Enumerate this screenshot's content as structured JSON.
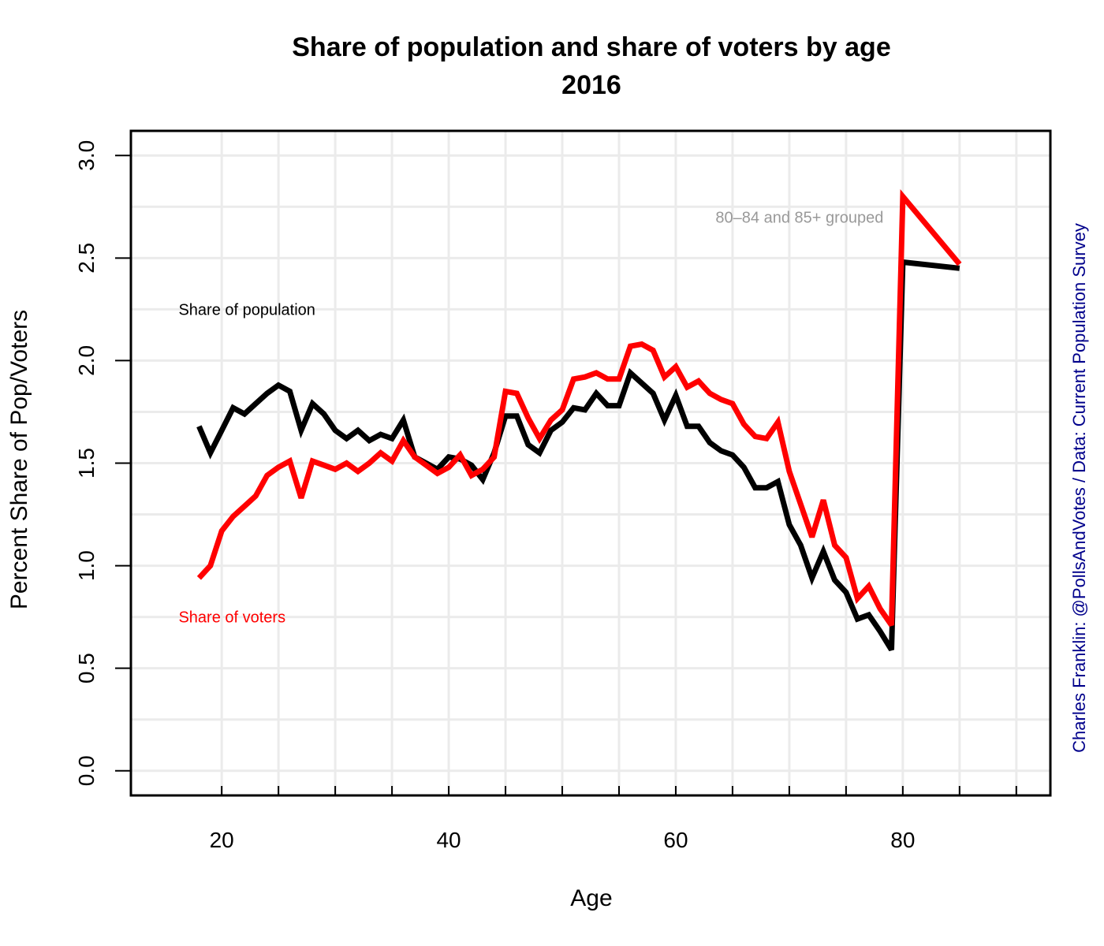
{
  "chart_data": {
    "type": "line",
    "title": "Share of population and share of voters by age",
    "subtitle": "2016",
    "xlabel": "Age",
    "ylabel": "Percent Share of Pop/Voters",
    "xlim": [
      12,
      93
    ],
    "ylim": [
      -0.12,
      3.12
    ],
    "x_ticks": [
      20,
      40,
      60,
      80
    ],
    "x_tick_labels": [
      "20",
      "40",
      "60",
      "80"
    ],
    "x_minor_ticks": [
      25,
      30,
      35,
      45,
      50,
      55,
      65,
      70,
      75,
      85,
      90
    ],
    "y_ticks": [
      0.0,
      0.5,
      1.0,
      1.5,
      2.0,
      2.5,
      3.0
    ],
    "y_tick_labels": [
      "0.0",
      "0.5",
      "1.0",
      "1.5",
      "2.0",
      "2.5",
      "3.0"
    ],
    "grid": true,
    "gridlines_x": [
      20,
      25,
      30,
      35,
      40,
      45,
      50,
      55,
      60,
      65,
      70,
      75,
      80,
      85,
      90
    ],
    "gridlines_y": [
      0.0,
      0.25,
      0.5,
      0.75,
      1.0,
      1.25,
      1.5,
      1.75,
      2.0,
      2.25,
      2.5,
      2.75,
      3.0
    ],
    "series": [
      {
        "name": "Share of population",
        "color": "#000000",
        "x": [
          18,
          19,
          20,
          21,
          22,
          23,
          24,
          25,
          26,
          27,
          28,
          29,
          30,
          31,
          32,
          33,
          34,
          35,
          36,
          37,
          38,
          39,
          40,
          41,
          42,
          43,
          44,
          45,
          46,
          47,
          48,
          49,
          50,
          51,
          52,
          53,
          54,
          55,
          56,
          57,
          58,
          59,
          60,
          61,
          62,
          63,
          64,
          65,
          66,
          67,
          68,
          69,
          70,
          71,
          72,
          73,
          74,
          75,
          76,
          77,
          78,
          79,
          80,
          85
        ],
        "values": [
          1.68,
          1.55,
          1.66,
          1.77,
          1.74,
          1.79,
          1.84,
          1.88,
          1.85,
          1.66,
          1.79,
          1.74,
          1.66,
          1.62,
          1.66,
          1.61,
          1.64,
          1.62,
          1.71,
          1.53,
          1.5,
          1.47,
          1.53,
          1.52,
          1.49,
          1.42,
          1.55,
          1.73,
          1.73,
          1.59,
          1.55,
          1.66,
          1.7,
          1.77,
          1.76,
          1.84,
          1.78,
          1.78,
          1.94,
          1.89,
          1.84,
          1.71,
          1.83,
          1.68,
          1.68,
          1.6,
          1.56,
          1.54,
          1.48,
          1.38,
          1.38,
          1.41,
          1.2,
          1.1,
          0.94,
          1.07,
          0.93,
          0.87,
          0.74,
          0.76,
          0.68,
          0.59,
          2.48,
          2.45
        ]
      },
      {
        "name": "Share of voters",
        "color": "#ff0000",
        "x": [
          18,
          19,
          20,
          21,
          22,
          23,
          24,
          25,
          26,
          27,
          28,
          29,
          30,
          31,
          32,
          33,
          34,
          35,
          36,
          37,
          38,
          39,
          40,
          41,
          42,
          43,
          44,
          45,
          46,
          47,
          48,
          49,
          50,
          51,
          52,
          53,
          54,
          55,
          56,
          57,
          58,
          59,
          60,
          61,
          62,
          63,
          64,
          65,
          66,
          67,
          68,
          69,
          70,
          71,
          72,
          73,
          74,
          75,
          76,
          77,
          78,
          79,
          80,
          85
        ],
        "values": [
          0.94,
          1.0,
          1.17,
          1.24,
          1.29,
          1.34,
          1.44,
          1.48,
          1.51,
          1.33,
          1.51,
          1.49,
          1.47,
          1.5,
          1.46,
          1.5,
          1.55,
          1.51,
          1.61,
          1.53,
          1.49,
          1.45,
          1.48,
          1.54,
          1.44,
          1.47,
          1.53,
          1.85,
          1.84,
          1.72,
          1.62,
          1.71,
          1.76,
          1.91,
          1.92,
          1.94,
          1.91,
          1.91,
          2.07,
          2.08,
          2.05,
          1.92,
          1.97,
          1.87,
          1.9,
          1.84,
          1.81,
          1.79,
          1.69,
          1.63,
          1.62,
          1.7,
          1.46,
          1.3,
          1.14,
          1.32,
          1.1,
          1.04,
          0.84,
          0.9,
          0.79,
          0.71,
          2.8,
          2.47
        ]
      }
    ],
    "annotations": [
      {
        "text": "Share of population",
        "x": 16.2,
        "y": 2.25,
        "color": "#000000",
        "anchor": "start"
      },
      {
        "text": "Share of voters",
        "x": 16.2,
        "y": 0.75,
        "color": "#ff0000",
        "anchor": "start"
      },
      {
        "text": "80–84 and 85+ grouped",
        "x": 78.3,
        "y": 2.7,
        "color": "#999999",
        "anchor": "end"
      }
    ],
    "credit": "Charles Franklin: @PollsAndVotes / Data: Current Population Survey",
    "credit_color": "#00008b"
  }
}
